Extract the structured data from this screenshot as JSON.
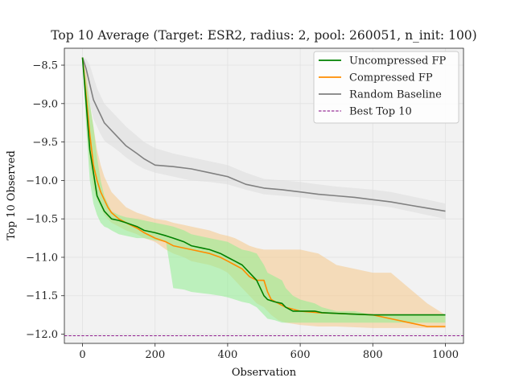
{
  "chart_data": {
    "type": "line",
    "title": "Top 10 Average (Target: ESR2, radius: 2, pool: 260051, n_init: 100)",
    "xlabel": "Observation",
    "ylabel": "Top 10 Observed",
    "xlim": [
      -50,
      1050
    ],
    "ylim": [
      -12.12,
      -8.28
    ],
    "x_ticks": [
      0,
      200,
      400,
      600,
      800,
      1000
    ],
    "y_ticks": [
      -8.5,
      -9.0,
      -9.5,
      -10.0,
      -10.5,
      -11.0,
      -11.5,
      -12.0
    ],
    "grid": true,
    "legend_position": "top-right",
    "series": [
      {
        "name": "Uncompressed FP",
        "color": "#008000",
        "band_color": "#90ee90",
        "x": [
          0,
          10,
          20,
          30,
          40,
          50,
          60,
          70,
          80,
          100,
          120,
          150,
          170,
          200,
          230,
          250,
          280,
          300,
          350,
          380,
          400,
          420,
          440,
          460,
          480,
          500,
          510,
          530,
          550,
          560,
          580,
          600,
          640,
          660,
          700,
          750,
          800,
          900,
          1000
        ],
        "values": [
          -8.4,
          -9.0,
          -9.6,
          -9.9,
          -10.2,
          -10.3,
          -10.4,
          -10.45,
          -10.5,
          -10.52,
          -10.55,
          -10.6,
          -10.65,
          -10.68,
          -10.72,
          -10.75,
          -10.8,
          -10.85,
          -10.9,
          -10.95,
          -11.0,
          -11.05,
          -11.1,
          -11.2,
          -11.3,
          -11.5,
          -11.55,
          -11.58,
          -11.6,
          -11.65,
          -11.7,
          -11.7,
          -11.7,
          -11.72,
          -11.73,
          -11.74,
          -11.75,
          -11.75,
          -11.75
        ],
        "upper": [
          -8.4,
          -8.7,
          -9.0,
          -9.3,
          -9.7,
          -10.0,
          -10.2,
          -10.3,
          -10.4,
          -10.45,
          -10.48,
          -10.5,
          -10.52,
          -10.55,
          -10.58,
          -10.6,
          -10.65,
          -10.7,
          -10.75,
          -10.78,
          -10.8,
          -10.85,
          -10.9,
          -10.92,
          -10.95,
          -11.1,
          -11.2,
          -11.25,
          -11.3,
          -11.4,
          -11.5,
          -11.55,
          -11.6,
          -11.65,
          -11.7,
          -11.7,
          -11.75,
          -11.75,
          -11.75
        ],
        "lower": [
          -8.4,
          -9.3,
          -10.0,
          -10.3,
          -10.45,
          -10.55,
          -10.6,
          -10.62,
          -10.65,
          -10.7,
          -10.72,
          -10.75,
          -10.75,
          -10.78,
          -10.8,
          -11.4,
          -11.42,
          -11.45,
          -11.48,
          -11.5,
          -11.52,
          -11.55,
          -11.58,
          -11.6,
          -11.65,
          -11.75,
          -11.8,
          -11.82,
          -11.85,
          -11.85,
          -11.85,
          -11.85,
          -11.85,
          -11.85,
          -11.85,
          -11.85,
          -11.85,
          -11.85,
          -11.85
        ]
      },
      {
        "name": "Compressed FP",
        "color": "#ff8c00",
        "band_color": "#f5c98a",
        "x": [
          0,
          10,
          20,
          30,
          40,
          50,
          60,
          70,
          80,
          100,
          120,
          150,
          170,
          200,
          230,
          250,
          280,
          300,
          350,
          380,
          400,
          420,
          440,
          460,
          480,
          500,
          510,
          520,
          540,
          560,
          600,
          650,
          700,
          800,
          850,
          900,
          950,
          1000
        ],
        "values": [
          -8.4,
          -8.9,
          -9.4,
          -9.8,
          -10.0,
          -10.15,
          -10.25,
          -10.35,
          -10.42,
          -10.5,
          -10.55,
          -10.62,
          -10.68,
          -10.75,
          -10.8,
          -10.85,
          -10.88,
          -10.9,
          -10.95,
          -11.0,
          -11.05,
          -11.1,
          -11.15,
          -11.25,
          -11.3,
          -11.3,
          -11.45,
          -11.55,
          -11.6,
          -11.65,
          -11.7,
          -11.72,
          -11.73,
          -11.75,
          -11.8,
          -11.85,
          -11.9,
          -11.9
        ],
        "upper": [
          -8.4,
          -8.6,
          -9.0,
          -9.3,
          -9.6,
          -9.8,
          -9.95,
          -10.05,
          -10.15,
          -10.25,
          -10.35,
          -10.42,
          -10.45,
          -10.5,
          -10.52,
          -10.55,
          -10.58,
          -10.6,
          -10.65,
          -10.7,
          -10.72,
          -10.75,
          -10.8,
          -10.85,
          -10.88,
          -10.9,
          -10.9,
          -10.9,
          -10.9,
          -10.9,
          -10.9,
          -10.95,
          -11.1,
          -11.2,
          -11.2,
          -11.4,
          -11.6,
          -11.75
        ],
        "lower": [
          -8.4,
          -9.2,
          -9.8,
          -10.1,
          -10.25,
          -10.35,
          -10.45,
          -10.5,
          -10.55,
          -10.6,
          -10.65,
          -10.7,
          -10.75,
          -10.8,
          -10.9,
          -10.95,
          -11.0,
          -11.05,
          -11.1,
          -11.15,
          -11.2,
          -11.3,
          -11.4,
          -11.5,
          -11.6,
          -11.65,
          -11.7,
          -11.75,
          -11.82,
          -11.85,
          -11.88,
          -11.9,
          -11.9,
          -11.92,
          -11.92,
          -11.92,
          -11.92,
          -11.92
        ]
      },
      {
        "name": "Random Baseline",
        "color": "#808080",
        "band_color": "#dcdcdc",
        "x": [
          0,
          10,
          20,
          30,
          40,
          50,
          60,
          70,
          80,
          100,
          120,
          150,
          170,
          200,
          250,
          300,
          350,
          400,
          450,
          500,
          550,
          600,
          650,
          700,
          750,
          800,
          850,
          900,
          950,
          1000
        ],
        "values": [
          -8.4,
          -8.55,
          -8.75,
          -8.95,
          -9.05,
          -9.15,
          -9.25,
          -9.3,
          -9.35,
          -9.45,
          -9.55,
          -9.65,
          -9.72,
          -9.8,
          -9.82,
          -9.85,
          -9.9,
          -9.95,
          -10.05,
          -10.1,
          -10.12,
          -10.15,
          -10.18,
          -10.2,
          -10.22,
          -10.25,
          -10.28,
          -10.32,
          -10.36,
          -10.4
        ],
        "upper": [
          -8.4,
          -8.42,
          -8.5,
          -8.65,
          -8.8,
          -8.9,
          -9.0,
          -9.05,
          -9.1,
          -9.2,
          -9.3,
          -9.42,
          -9.5,
          -9.58,
          -9.65,
          -9.7,
          -9.75,
          -9.8,
          -9.9,
          -9.98,
          -10.0,
          -10.02,
          -10.05,
          -10.08,
          -10.1,
          -10.12,
          -10.15,
          -10.2,
          -10.25,
          -10.3
        ],
        "lower": [
          -8.4,
          -8.7,
          -9.0,
          -9.2,
          -9.3,
          -9.4,
          -9.48,
          -9.52,
          -9.55,
          -9.62,
          -9.7,
          -9.8,
          -9.85,
          -9.9,
          -9.95,
          -10.0,
          -10.02,
          -10.05,
          -10.12,
          -10.18,
          -10.2,
          -10.22,
          -10.25,
          -10.28,
          -10.3,
          -10.32,
          -10.35,
          -10.4,
          -10.45,
          -10.5
        ]
      },
      {
        "name": "Best Top 10",
        "color": "#800080",
        "style": "dashed",
        "constant": -12.02
      }
    ]
  }
}
